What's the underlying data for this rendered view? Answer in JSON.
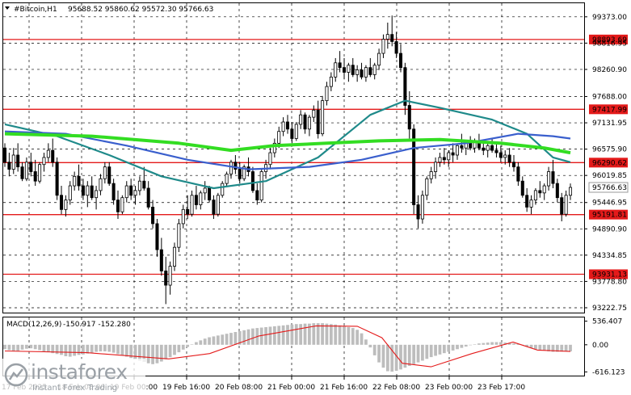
{
  "header": {
    "symbol": "#Bitcoin,H1",
    "ohlc": "95688.52 95860.62 95572.30 95766.63"
  },
  "macd_header": {
    "label": "MACD(12,26,9)",
    "values": "-150.917 -152.280"
  },
  "logo": {
    "brand": "instaforex",
    "tagline": "Instant Forex Trading"
  },
  "colors": {
    "bull": "#000000",
    "bear": "#000000",
    "level": "#e41a1a",
    "ma_fast": "#1f8a8a",
    "ma_mid": "#3a5fcd",
    "ma_slow": "#33dd22",
    "signal": "#e41a1a",
    "histogram": "#bdbdbd"
  },
  "chart_data": {
    "type": "candlestick",
    "symbol": "#Bitcoin",
    "timeframe": "H1",
    "price_axis_ticks": [
      99373.0,
      98816.95,
      98260.9,
      97688.0,
      97131.95,
      96575.9,
      96019.85,
      95446.95,
      94890.9,
      94334.85,
      93778.8,
      93222.75
    ],
    "ylim": [
      93120,
      99660
    ],
    "time_axis_labels": [
      "17 Feb 2025",
      "18 Feb 08:00",
      "19 Feb 00:00",
      "19 Feb 16:00",
      "20 Feb 08:00",
      "21 Feb 00:00",
      "21 Feb 16:00",
      "22 Feb 08:00",
      "23 Feb 00:00",
      "23 Feb 17:00"
    ],
    "horizontal_levels": [
      98893.69,
      97417.99,
      96290.62,
      95191.81,
      93931.13
    ],
    "current_price": 95766.63,
    "candles": [
      [
        96600,
        96700,
        96200,
        96300
      ],
      [
        96300,
        96500,
        96000,
        96150
      ],
      [
        96150,
        96600,
        96050,
        96450
      ],
      [
        96450,
        96700,
        96100,
        96200
      ],
      [
        96200,
        96300,
        95900,
        95950
      ],
      [
        95950,
        96400,
        95900,
        96300
      ],
      [
        96300,
        96500,
        96000,
        96100
      ],
      [
        96100,
        96350,
        95800,
        95900
      ],
      [
        95900,
        96300,
        95850,
        96250
      ],
      [
        96250,
        96500,
        96100,
        96400
      ],
      [
        96400,
        96700,
        96300,
        96550
      ],
      [
        96550,
        96800,
        96200,
        96300
      ],
      [
        96300,
        96400,
        95500,
        95600
      ],
      [
        95600,
        95800,
        95200,
        95300
      ],
      [
        95300,
        95600,
        95150,
        95500
      ],
      [
        95500,
        95900,
        95400,
        95800
      ],
      [
        95800,
        96100,
        95700,
        96000
      ],
      [
        96000,
        96250,
        95700,
        95800
      ],
      [
        95800,
        95950,
        95500,
        95600
      ],
      [
        95600,
        95900,
        95350,
        95800
      ],
      [
        95800,
        96000,
        95500,
        95550
      ],
      [
        95550,
        95800,
        95300,
        95700
      ],
      [
        95700,
        96050,
        95600,
        95950
      ],
      [
        95950,
        96300,
        95850,
        96200
      ],
      [
        96200,
        96300,
        95800,
        95850
      ],
      [
        95850,
        95950,
        95400,
        95500
      ],
      [
        95500,
        95700,
        95100,
        95250
      ],
      [
        95250,
        95600,
        95200,
        95550
      ],
      [
        95550,
        95900,
        95450,
        95800
      ],
      [
        95800,
        95950,
        95500,
        95600
      ],
      [
        95600,
        95800,
        95400,
        95700
      ],
      [
        95700,
        96000,
        95600,
        95900
      ],
      [
        95900,
        96200,
        95700,
        95750
      ],
      [
        95750,
        95900,
        95300,
        95350
      ],
      [
        95350,
        95500,
        94900,
        95000
      ],
      [
        95000,
        95100,
        94300,
        94450
      ],
      [
        94450,
        94700,
        93900,
        94000
      ],
      [
        94000,
        94300,
        93300,
        93700
      ],
      [
        93700,
        94200,
        93500,
        94100
      ],
      [
        94100,
        94600,
        94000,
        94500
      ],
      [
        94500,
        95100,
        94400,
        95000
      ],
      [
        95000,
        95400,
        94900,
        95300
      ],
      [
        95300,
        95600,
        95100,
        95200
      ],
      [
        95200,
        95700,
        95150,
        95600
      ],
      [
        95600,
        95800,
        95300,
        95400
      ],
      [
        95400,
        95700,
        95300,
        95650
      ],
      [
        95650,
        95900,
        95500,
        95750
      ],
      [
        95750,
        95800,
        95450,
        95500
      ],
      [
        95500,
        95600,
        95100,
        95200
      ],
      [
        95200,
        95650,
        95150,
        95600
      ],
      [
        95600,
        95900,
        95550,
        95850
      ],
      [
        95850,
        96100,
        95800,
        96050
      ],
      [
        96050,
        96350,
        95950,
        96300
      ],
      [
        96300,
        96450,
        96050,
        96150
      ],
      [
        96150,
        96300,
        95850,
        95950
      ],
      [
        95950,
        96250,
        95900,
        96200
      ],
      [
        96200,
        96400,
        96000,
        96100
      ],
      [
        96100,
        96200,
        95650,
        95700
      ],
      [
        95700,
        95850,
        95400,
        95500
      ],
      [
        95500,
        96150,
        95450,
        96100
      ],
      [
        96100,
        96350,
        95950,
        96250
      ],
      [
        96250,
        96600,
        96150,
        96500
      ],
      [
        96500,
        96800,
        96400,
        96700
      ],
      [
        96700,
        97050,
        96600,
        96950
      ],
      [
        96950,
        97250,
        96850,
        97150
      ],
      [
        97150,
        97300,
        96900,
        97000
      ],
      [
        97000,
        97150,
        96700,
        96800
      ],
      [
        96800,
        97150,
        96750,
        97100
      ],
      [
        97100,
        97400,
        97000,
        97300
      ],
      [
        97300,
        97350,
        96900,
        97000
      ],
      [
        97000,
        97300,
        96850,
        97250
      ],
      [
        97250,
        97500,
        97150,
        97400
      ],
      [
        97400,
        97600,
        96800,
        96900
      ],
      [
        96900,
        97700,
        96850,
        97600
      ],
      [
        97600,
        98000,
        97500,
        97900
      ],
      [
        97900,
        98200,
        97800,
        98100
      ],
      [
        98100,
        98500,
        98000,
        98400
      ],
      [
        98400,
        98650,
        98200,
        98300
      ],
      [
        98300,
        98500,
        98050,
        98200
      ],
      [
        98200,
        98400,
        98000,
        98350
      ],
      [
        98350,
        98500,
        98100,
        98150
      ],
      [
        98150,
        98350,
        98000,
        98250
      ],
      [
        98250,
        98400,
        98050,
        98100
      ],
      [
        98100,
        98350,
        98000,
        98300
      ],
      [
        98300,
        98500,
        98100,
        98150
      ],
      [
        98150,
        98400,
        98050,
        98350
      ],
      [
        98350,
        98700,
        98250,
        98600
      ],
      [
        98600,
        99000,
        98500,
        98900
      ],
      [
        98900,
        99250,
        98700,
        99000
      ],
      [
        99000,
        99400,
        98750,
        98850
      ],
      [
        98850,
        99050,
        98500,
        98600
      ],
      [
        98600,
        98800,
        98200,
        98300
      ],
      [
        98300,
        98400,
        97300,
        97500
      ],
      [
        97500,
        97800,
        96800,
        97000
      ],
      [
        97000,
        97100,
        95200,
        95400
      ],
      [
        95400,
        95600,
        94900,
        95100
      ],
      [
        95100,
        95700,
        95000,
        95600
      ],
      [
        95600,
        96000,
        95500,
        95950
      ],
      [
        95950,
        96200,
        95850,
        96100
      ],
      [
        96100,
        96400,
        95950,
        96300
      ],
      [
        96300,
        96500,
        96200,
        96400
      ],
      [
        96400,
        96600,
        96250,
        96350
      ],
      [
        96350,
        96550,
        96200,
        96500
      ],
      [
        96500,
        96700,
        96300,
        96450
      ],
      [
        96450,
        96700,
        96350,
        96650
      ],
      [
        96650,
        96900,
        96500,
        96600
      ],
      [
        96600,
        96750,
        96450,
        96700
      ],
      [
        96700,
        96850,
        96550,
        96600
      ],
      [
        96600,
        96800,
        96500,
        96750
      ],
      [
        96750,
        96900,
        96550,
        96600
      ],
      [
        96600,
        96750,
        96450,
        96550
      ],
      [
        96550,
        96700,
        96400,
        96650
      ],
      [
        96650,
        96800,
        96500,
        96550
      ],
      [
        96550,
        96700,
        96400,
        96500
      ],
      [
        96500,
        96650,
        96300,
        96400
      ],
      [
        96400,
        96550,
        96250,
        96450
      ],
      [
        96450,
        96600,
        96200,
        96300
      ],
      [
        96300,
        96450,
        96100,
        96200
      ],
      [
        96200,
        96300,
        95800,
        95900
      ],
      [
        95900,
        96000,
        95550,
        95600
      ],
      [
        95600,
        95750,
        95250,
        95350
      ],
      [
        95350,
        95600,
        95200,
        95500
      ],
      [
        95500,
        95750,
        95400,
        95700
      ],
      [
        95700,
        95900,
        95550,
        95650
      ],
      [
        95650,
        95850,
        95500,
        95800
      ],
      [
        95800,
        96200,
        95700,
        96100
      ],
      [
        96100,
        96350,
        95750,
        95850
      ],
      [
        95850,
        95950,
        95450,
        95550
      ],
      [
        95550,
        95650,
        95050,
        95200
      ],
      [
        95200,
        95700,
        95150,
        95600
      ],
      [
        95600,
        95850,
        95500,
        95766.63
      ]
    ],
    "moving_averages": [
      {
        "color": "#1f8a8a",
        "points": [
          [
            0,
            97100
          ],
          [
            12,
            96850
          ],
          [
            24,
            96450
          ],
          [
            36,
            96000
          ],
          [
            48,
            95750
          ],
          [
            60,
            95900
          ],
          [
            72,
            96400
          ],
          [
            84,
            97300
          ],
          [
            92,
            97600
          ],
          [
            100,
            97450
          ],
          [
            112,
            97200
          ],
          [
            120,
            96900
          ],
          [
            126,
            96400
          ],
          [
            130,
            96300
          ]
        ]
      },
      {
        "color": "#3a5fcd",
        "points": [
          [
            0,
            96950
          ],
          [
            14,
            96900
          ],
          [
            28,
            96650
          ],
          [
            42,
            96350
          ],
          [
            56,
            96150
          ],
          [
            70,
            96200
          ],
          [
            82,
            96350
          ],
          [
            94,
            96600
          ],
          [
            106,
            96700
          ],
          [
            118,
            96900
          ],
          [
            126,
            96850
          ],
          [
            130,
            96800
          ]
        ]
      },
      {
        "color": "#33dd22",
        "points": [
          [
            0,
            96900
          ],
          [
            20,
            96850
          ],
          [
            40,
            96700
          ],
          [
            52,
            96550
          ],
          [
            62,
            96650
          ],
          [
            74,
            96700
          ],
          [
            86,
            96750
          ],
          [
            100,
            96780
          ],
          [
            114,
            96700
          ],
          [
            124,
            96600
          ],
          [
            130,
            96500
          ]
        ]
      }
    ],
    "macd": {
      "label": "MACD(12,26,9)",
      "axis_ticks": [
        536.407,
        0.0,
        -616.123
      ],
      "ylim": [
        -700,
        620
      ],
      "current": [
        -150.917,
        -152.28
      ],
      "histogram": [
        -100,
        -120,
        -150,
        -140,
        -110,
        -90,
        -80,
        -100,
        -120,
        -150,
        -170,
        -190,
        -210,
        -230,
        -260,
        -270,
        -250,
        -230,
        -220,
        -200,
        -180,
        -160,
        -150,
        -150,
        -160,
        -180,
        -210,
        -240,
        -270,
        -300,
        -330,
        -360,
        -390,
        -420,
        -440,
        -420,
        -380,
        -330,
        -280,
        -230,
        -170,
        -110,
        -50,
        10,
        60,
        100,
        140,
        170,
        190,
        210,
        230,
        250,
        270,
        290,
        310,
        330,
        350,
        370,
        380,
        390,
        400,
        410,
        420,
        430,
        440,
        450,
        460,
        470,
        470,
        480,
        480,
        490,
        490,
        490,
        480,
        470,
        460,
        440,
        420,
        400,
        380,
        340,
        260,
        120,
        -60,
        -240,
        -400,
        -520,
        -600,
        -610,
        -590,
        -560,
        -520,
        -480,
        -440,
        -400,
        -360,
        -320,
        -280,
        -250,
        -220,
        -190,
        -160,
        -130,
        -100,
        -70,
        -40,
        -10,
        10,
        30,
        40,
        50,
        60,
        60,
        60,
        50,
        40,
        30,
        20,
        -10,
        -40,
        -70,
        -100,
        -120,
        -130,
        -150,
        -160,
        -160,
        -155,
        -150,
        -151
      ],
      "signal": [
        [
          0,
          -140
        ],
        [
          20,
          -180
        ],
        [
          40,
          -320
        ],
        [
          50,
          -200
        ],
        [
          62,
          200
        ],
        [
          76,
          430
        ],
        [
          86,
          420
        ],
        [
          92,
          160
        ],
        [
          97,
          -420
        ],
        [
          104,
          -500
        ],
        [
          114,
          -200
        ],
        [
          124,
          60
        ],
        [
          130,
          -120
        ],
        [
          138,
          -152
        ]
      ]
    }
  }
}
